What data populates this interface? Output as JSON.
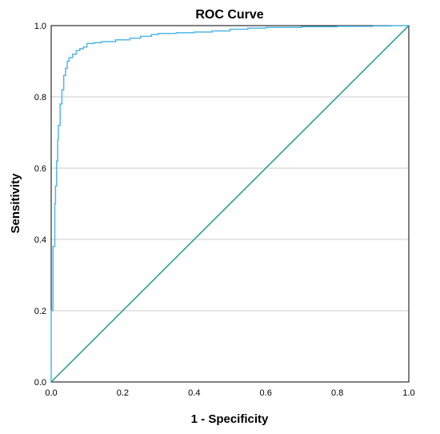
{
  "chart_data": {
    "type": "line",
    "title": "ROC Curve",
    "xlabel": "1 - Specificity",
    "ylabel": "Sensitivity",
    "xlim": [
      0,
      1
    ],
    "ylim": [
      0,
      1
    ],
    "xticks": [
      "0.0",
      "0.2",
      "0.4",
      "0.6",
      "0.8",
      "1.0"
    ],
    "yticks": [
      "0.0",
      "0.2",
      "0.4",
      "0.6",
      "0.8",
      "1.0"
    ],
    "grid": "horizontal",
    "series": [
      {
        "role": "roc-curve",
        "color": "#4fb8e6",
        "x": [
          0.0,
          0.0,
          0.005,
          0.005,
          0.01,
          0.01,
          0.012,
          0.015,
          0.018,
          0.02,
          0.025,
          0.03,
          0.035,
          0.04,
          0.045,
          0.05,
          0.06,
          0.07,
          0.08,
          0.09,
          0.1,
          0.12,
          0.14,
          0.16,
          0.18,
          0.2,
          0.22,
          0.25,
          0.28,
          0.3,
          0.35,
          0.4,
          0.45,
          0.5,
          0.55,
          0.6,
          0.7,
          0.8,
          0.9,
          0.95,
          1.0
        ],
        "y": [
          0.0,
          0.2,
          0.3,
          0.38,
          0.42,
          0.5,
          0.55,
          0.62,
          0.68,
          0.72,
          0.78,
          0.82,
          0.86,
          0.88,
          0.9,
          0.91,
          0.92,
          0.93,
          0.935,
          0.94,
          0.95,
          0.952,
          0.955,
          0.955,
          0.96,
          0.96,
          0.965,
          0.97,
          0.975,
          0.978,
          0.98,
          0.982,
          0.985,
          0.99,
          0.993,
          0.995,
          0.997,
          0.998,
          0.999,
          1.0,
          1.0
        ]
      },
      {
        "role": "reference-line",
        "color": "#1f9a92",
        "x": [
          0,
          1
        ],
        "y": [
          0,
          1
        ]
      }
    ]
  }
}
